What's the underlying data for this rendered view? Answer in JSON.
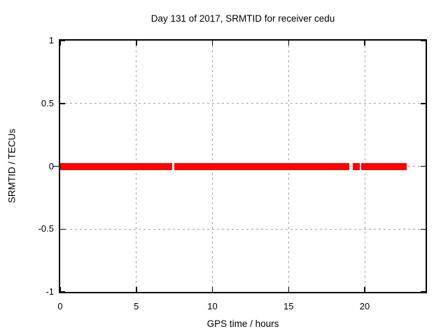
{
  "chart_data": {
    "type": "line",
    "title": "Day 131 of 2017, SRMTID for receiver cedu",
    "xlabel": "GPS time / hours",
    "ylabel": "SRMTID / TECUs",
    "xlim": [
      0,
      24
    ],
    "ylim": [
      -1,
      1
    ],
    "grid": true,
    "legend": "none",
    "xticks": [
      {
        "label": "0",
        "value": 0
      },
      {
        "label": "5",
        "value": 5
      },
      {
        "label": "10",
        "value": 10
      },
      {
        "label": "15",
        "value": 15
      },
      {
        "label": "20",
        "value": 20
      }
    ],
    "yticks": [
      {
        "label": "1",
        "value": 1
      },
      {
        "label": "0.5",
        "value": 0.5
      },
      {
        "label": "0",
        "value": 0
      },
      {
        "label": "-0.5",
        "value": -0.5
      },
      {
        "label": "-1",
        "value": -1
      }
    ],
    "series": [
      {
        "name": "SRMTID",
        "description": "thick red line at y = 0 with data gaps",
        "y_value": 0,
        "line_thickness_px": 10,
        "segments_hours": [
          [
            0,
            7.36
          ],
          [
            7.5,
            18.99
          ],
          [
            19.21,
            19.66
          ],
          [
            19.79,
            22.77
          ]
        ]
      }
    ],
    "colors": {
      "series": "#ff0000",
      "grid": "#a0a0a0",
      "axis": "#000000",
      "text": "#000000",
      "background": "#ffffff"
    }
  }
}
